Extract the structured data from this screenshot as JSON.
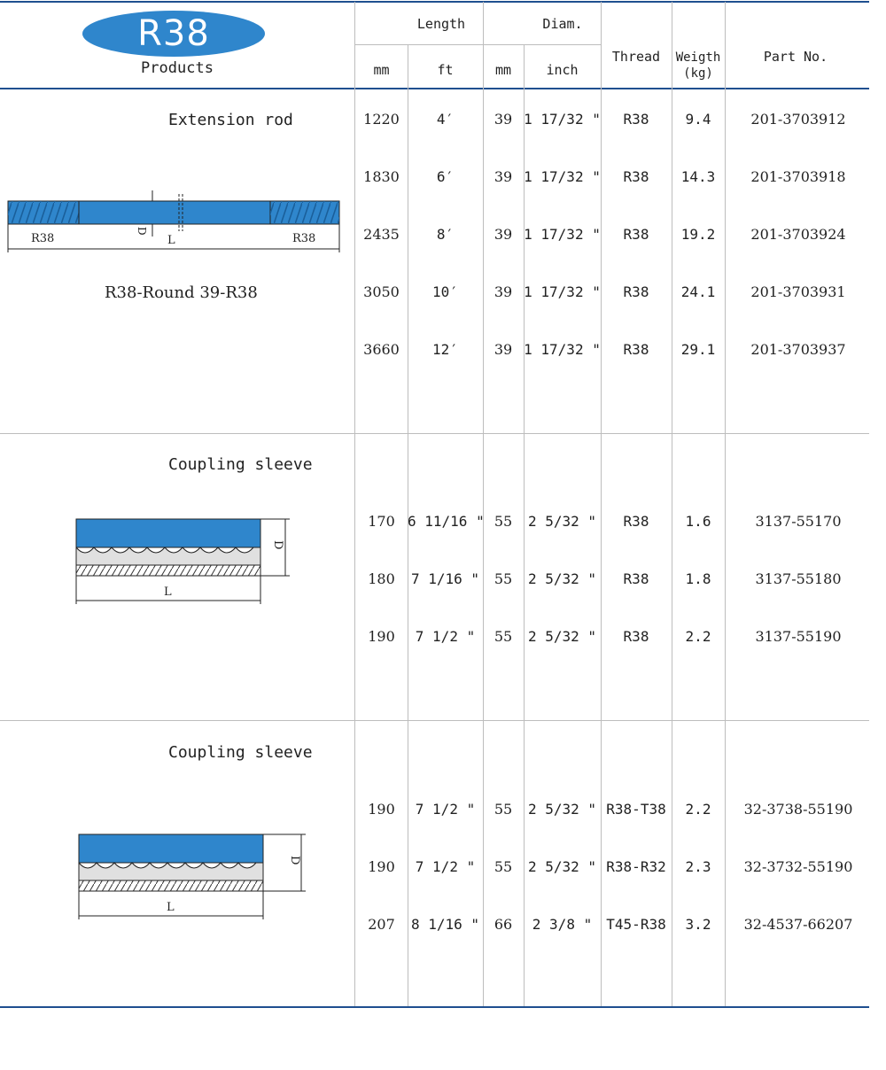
{
  "header": {
    "logo": "R38",
    "products": "Products",
    "length": "Length",
    "diam": "Diam.",
    "thread": "Thread",
    "weight": "Weigth\n(kg)",
    "part_no": "Part No.",
    "mm1": "mm",
    "ft": "ft",
    "mm2": "mm",
    "inch": "inch"
  },
  "sections": [
    {
      "title": "Extension rod",
      "subtitle": "R38-Round 39-R38",
      "diagram_labels": {
        "left": "R38",
        "right": "R38",
        "d": "D",
        "l": "L"
      },
      "rows": [
        {
          "mm": "1220",
          "ft": "4′",
          "dmm": "39",
          "inch": "1 17/32 \"",
          "thread": "R38",
          "weight": "9.4",
          "part": "201-3703912"
        },
        {
          "mm": "1830",
          "ft": "6′",
          "dmm": "39",
          "inch": "1 17/32 \"",
          "thread": "R38",
          "weight": "14.3",
          "part": "201-3703918"
        },
        {
          "mm": "2435",
          "ft": "8′",
          "dmm": "39",
          "inch": "1 17/32 \"",
          "thread": "R38",
          "weight": "19.2",
          "part": "201-3703924"
        },
        {
          "mm": "3050",
          "ft": "10′",
          "dmm": "39",
          "inch": "1 17/32 \"",
          "thread": "R38",
          "weight": "24.1",
          "part": "201-3703931"
        },
        {
          "mm": "3660",
          "ft": "12′",
          "dmm": "39",
          "inch": "1 17/32 \"",
          "thread": "R38",
          "weight": "29.1",
          "part": "201-3703937"
        }
      ]
    },
    {
      "title": "Coupling sleeve",
      "diagram_labels": {
        "d": "D",
        "l": "L"
      },
      "rows": [
        {
          "mm": "170",
          "ft": "6 11/16 \"",
          "dmm": "55",
          "inch": "2 5/32 \"",
          "thread": "R38",
          "weight": "1.6",
          "part": "3137-55170"
        },
        {
          "mm": "180",
          "ft": "7 1/16 \"",
          "dmm": "55",
          "inch": "2 5/32 \"",
          "thread": "R38",
          "weight": "1.8",
          "part": "3137-55180"
        },
        {
          "mm": "190",
          "ft": "7 1/2 \"",
          "dmm": "55",
          "inch": "2 5/32 \"",
          "thread": "R38",
          "weight": "2.2",
          "part": "3137-55190"
        }
      ]
    },
    {
      "title": "Coupling sleeve",
      "diagram_labels": {
        "d": "D",
        "l": "L"
      },
      "rows": [
        {
          "mm": "190",
          "ft": "7 1/2 \"",
          "dmm": "55",
          "inch": "2 5/32 \"",
          "thread": "R38-T38",
          "weight": "2.2",
          "part": "32-3738-55190"
        },
        {
          "mm": "190",
          "ft": "7 1/2 \"",
          "dmm": "55",
          "inch": "2 5/32 \"",
          "thread": "R38-R32",
          "weight": "2.3",
          "part": "32-3732-55190"
        },
        {
          "mm": "207",
          "ft": "8 1/16 \"",
          "dmm": "66",
          "inch": "2 3/8 \"",
          "thread": "T45-R38",
          "weight": "3.2",
          "part": "32-4537-66207"
        }
      ]
    }
  ],
  "colors": {
    "accent": "#2f86cc",
    "rule": "#1f4f8f",
    "body": "#2f86cc"
  }
}
